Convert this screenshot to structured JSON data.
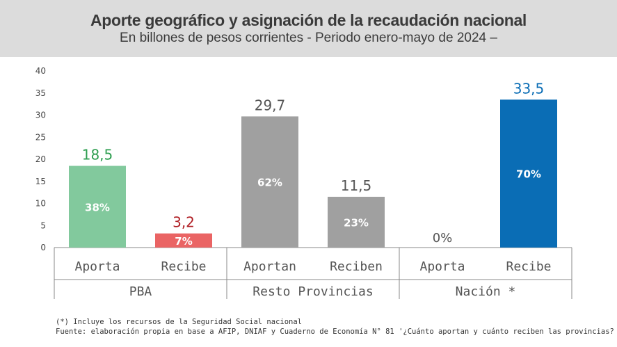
{
  "header": {
    "title": "Aporte geográfico y asignación de la recaudación nacional",
    "subtitle": "En billones de pesos corrientes - Periodo enero-mayo de 2024 –"
  },
  "chart_data": {
    "type": "bar",
    "ylim": [
      0,
      40
    ],
    "yticks": [
      0,
      5,
      10,
      15,
      20,
      25,
      30,
      35,
      40
    ],
    "grid": false,
    "groups": [
      {
        "label": "PBA",
        "bars": [
          {
            "label": "Aporta",
            "value": 18.5,
            "value_label": "18,5",
            "share_label": "38%",
            "color": "#82c99d",
            "value_color": "#2e9e50",
            "share_color": "#ffffff"
          },
          {
            "label": "Recibe",
            "value": 3.2,
            "value_label": "3,2",
            "share_label": "7%",
            "color": "#ea6464",
            "value_color": "#b01e24",
            "share_color": "#ffffff"
          }
        ]
      },
      {
        "label": "Resto Provincias",
        "bars": [
          {
            "label": "Aportan",
            "value": 29.7,
            "value_label": "29,7",
            "share_label": "62%",
            "color": "#a0a0a0",
            "value_color": "#555555",
            "share_color": "#ffffff"
          },
          {
            "label": "Reciben",
            "value": 11.5,
            "value_label": "11,5",
            "share_label": "23%",
            "color": "#a0a0a0",
            "value_color": "#555555",
            "share_color": "#ffffff"
          }
        ]
      },
      {
        "label": "Nación *",
        "bars": [
          {
            "label": "Aporta",
            "value": 0,
            "value_label": "",
            "share_label": "0%",
            "color": "#a0a0a0",
            "value_color": "#555555",
            "share_color": "#555555"
          },
          {
            "label": "Recibe",
            "value": 33.5,
            "value_label": "33,5",
            "share_label": "70%",
            "color": "#0a6db5",
            "value_color": "#0a6db5",
            "share_color": "#ffffff"
          }
        ]
      }
    ]
  },
  "footnotes": {
    "note": "(*) Incluye los recursos de la Seguridad Social nacional",
    "source": "Fuente: elaboración propia en base a AFIP, DNIAF y Cuaderno de Economía N° 81 '¿Cuánto aportan y cuánto reciben las provincias?"
  }
}
